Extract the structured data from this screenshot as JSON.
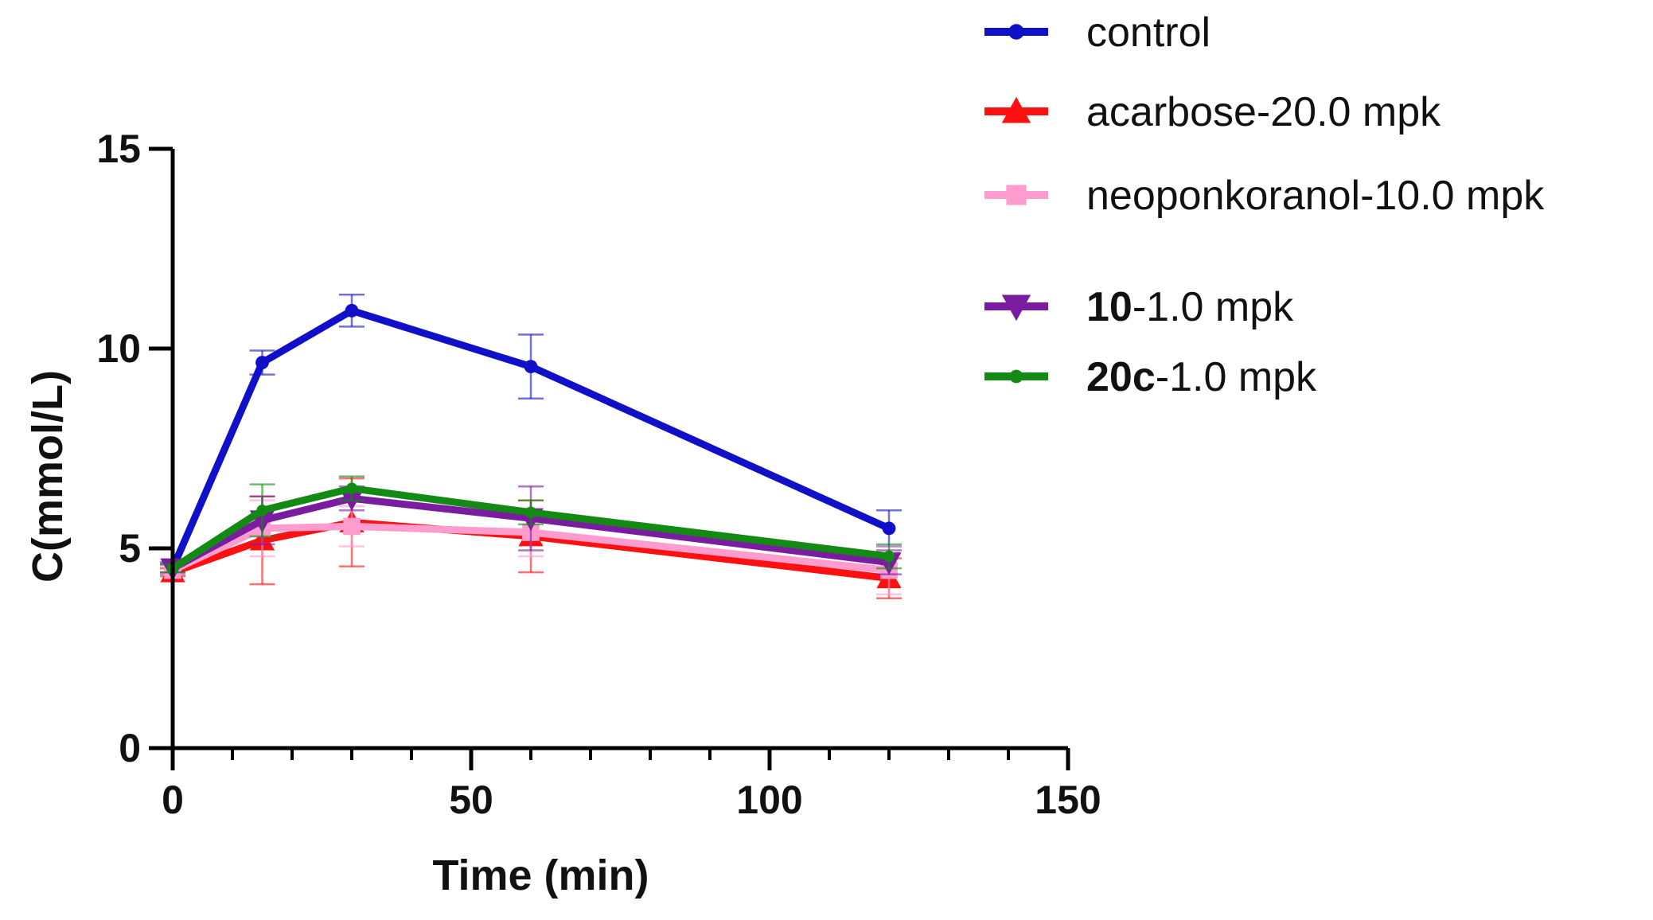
{
  "chart_data": {
    "type": "line",
    "title": "",
    "xlabel": "Time (min)",
    "ylabel": "C(mmol/L)",
    "xlim": [
      0,
      150
    ],
    "ylim": [
      0,
      15
    ],
    "xticks": [
      0,
      50,
      100,
      150
    ],
    "yticks": [
      0,
      5,
      10,
      15
    ],
    "xtick_labels": [
      "0",
      "50",
      "100",
      "150"
    ],
    "ytick_labels": [
      "0",
      "5",
      "10",
      "15"
    ],
    "grid": false,
    "legend_position": "top-right",
    "x": [
      0,
      15,
      30,
      60,
      120
    ],
    "series": [
      {
        "name": "control",
        "bold_prefix": "",
        "suffix": "control",
        "color": "#1010c8",
        "marker": "circle",
        "values": [
          4.5,
          9.65,
          10.95,
          9.55,
          5.5
        ],
        "errors": [
          0.15,
          0.3,
          0.4,
          0.8,
          0.45
        ]
      },
      {
        "name": "acarbose-20.0 mpk",
        "bold_prefix": "",
        "suffix": "acarbose-20.0 mpk",
        "color": "#ff1010",
        "marker": "triangle-up",
        "values": [
          4.4,
          5.2,
          5.65,
          5.3,
          4.25
        ],
        "errors": [
          0.1,
          1.1,
          1.1,
          0.9,
          0.5
        ]
      },
      {
        "name": "neoponkoranol-10.0 mpk",
        "bold_prefix": "",
        "suffix": "neoponkoranol-10.0 mpk",
        "color": "#ff9ccf",
        "marker": "square",
        "values": [
          4.45,
          5.5,
          5.55,
          5.4,
          4.45
        ],
        "errors": [
          0.1,
          0.7,
          0.5,
          0.6,
          0.6
        ]
      },
      {
        "name": "10-1.0 mpk",
        "bold_prefix": "10",
        "suffix": "-1.0 mpk",
        "color": "#7a1ca0",
        "marker": "triangle-down",
        "values": [
          4.5,
          5.7,
          6.25,
          5.75,
          4.65
        ],
        "errors": [
          0.1,
          0.6,
          0.3,
          0.8,
          0.3
        ]
      },
      {
        "name": "20c-1.0 mpk",
        "bold_prefix": "20c",
        "suffix": "-1.0 mpk",
        "color": "#138a13",
        "marker": "circle-small",
        "values": [
          4.5,
          5.95,
          6.5,
          5.9,
          4.8
        ],
        "errors": [
          0.1,
          0.65,
          0.3,
          0.3,
          0.3
        ]
      }
    ]
  }
}
